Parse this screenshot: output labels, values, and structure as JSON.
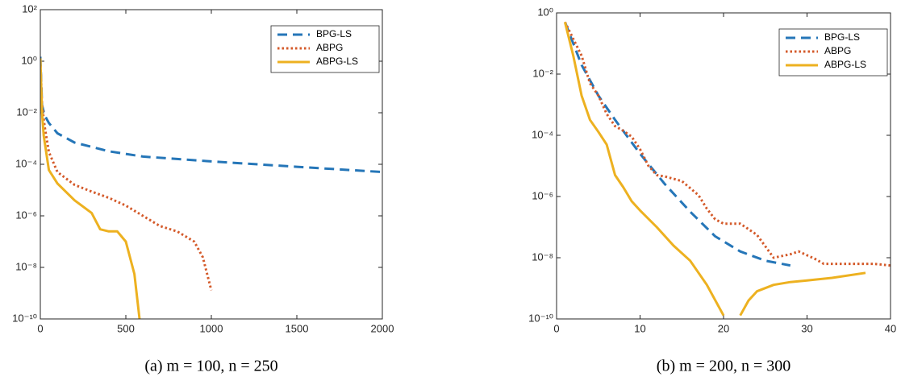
{
  "chart_data": [
    {
      "type": "line",
      "caption": "(a) m = 100, n = 250",
      "log_y": true,
      "legend": "upper right",
      "xlim": [
        0,
        2000
      ],
      "xticks": [
        0,
        500,
        1000,
        1500,
        2000
      ],
      "ylim": [
        1e-10,
        100
      ],
      "yticks": [
        {
          "value": 100,
          "label": "10²"
        },
        {
          "value": 1,
          "label": "10⁰"
        },
        {
          "value": 0.01,
          "label": "10⁻²"
        },
        {
          "value": 0.0001,
          "label": "10⁻⁴"
        },
        {
          "value": 1e-06,
          "label": "10⁻⁶"
        },
        {
          "value": 1e-08,
          "label": "10⁻⁸"
        },
        {
          "value": 1e-10,
          "label": "10⁻¹⁰"
        }
      ],
      "series": [
        {
          "name": "BPG-LS",
          "color": "#2576b8",
          "style": "dashed",
          "x": [
            0,
            10,
            25,
            50,
            100,
            200,
            400,
            600,
            1000,
            1500,
            2000
          ],
          "values": [
            1.5,
            0.02,
            0.008,
            0.004,
            0.0016,
            0.0007,
            0.00032,
            0.0002,
            0.00013,
            8e-05,
            5e-05
          ]
        },
        {
          "name": "ABPG",
          "color": "#d45a2a",
          "style": "dotted",
          "x": [
            0,
            10,
            25,
            50,
            100,
            200,
            300,
            400,
            500,
            600,
            700,
            800,
            900,
            950,
            1000
          ],
          "values": [
            1,
            0.02,
            0.003,
            0.0003,
            5e-05,
            1.6e-05,
            8.7e-06,
            5e-06,
            2.5e-06,
            1e-06,
            4e-07,
            2.5e-07,
            1e-07,
            2.5e-08,
            1.3e-09
          ]
        },
        {
          "name": "ABPG-LS",
          "color": "#edb120",
          "style": "solid",
          "x": [
            0,
            10,
            20,
            50,
            100,
            200,
            300,
            350,
            400,
            450,
            500,
            550,
            580
          ],
          "values": [
            1.3,
            0.01,
            0.0013,
            6e-05,
            1.8e-05,
            4e-06,
            1.3e-06,
            3e-07,
            2.5e-07,
            2.5e-07,
            1e-07,
            5.6e-09,
            1e-10
          ]
        }
      ]
    },
    {
      "type": "line",
      "caption": "(b) m = 200, n = 300",
      "log_y": true,
      "legend": "upper right",
      "xlim": [
        0,
        40
      ],
      "xticks": [
        0,
        10,
        20,
        30,
        40
      ],
      "ylim": [
        1e-10,
        1
      ],
      "yticks": [
        {
          "value": 1,
          "label": "10⁰"
        },
        {
          "value": 0.01,
          "label": "10⁻²"
        },
        {
          "value": 0.0001,
          "label": "10⁻⁴"
        },
        {
          "value": 1e-06,
          "label": "10⁻⁶"
        },
        {
          "value": 1e-08,
          "label": "10⁻⁸"
        },
        {
          "value": 1e-10,
          "label": "10⁻¹⁰"
        }
      ],
      "series": [
        {
          "name": "BPG-LS",
          "color": "#2576b8",
          "style": "dashed",
          "x": [
            1,
            3,
            5,
            7,
            10,
            13,
            16,
            19,
            22,
            25,
            28
          ],
          "values": [
            0.5,
            0.02,
            0.002,
            0.00032,
            2.5e-05,
            2.5e-06,
            3.2e-07,
            5e-08,
            1.6e-08,
            8e-09,
            5.6e-09
          ]
        },
        {
          "name": "ABPG",
          "color": "#d45a2a",
          "style": "dotted",
          "x": [
            1,
            3,
            4,
            5,
            6,
            7,
            8,
            9,
            10,
            11,
            12,
            13,
            15,
            17,
            18,
            19,
            20,
            22,
            24,
            26,
            28,
            29,
            31,
            32,
            35,
            38,
            40
          ],
          "values": [
            0.5,
            0.04,
            0.005,
            0.002,
            0.0005,
            0.0002,
            0.00014,
            9e-05,
            3.5e-05,
            1e-05,
            5e-06,
            4.5e-06,
            3.2e-06,
            1.1e-06,
            4e-07,
            1.8e-07,
            1.3e-07,
            1.3e-07,
            5.6e-08,
            1e-08,
            1.3e-08,
            1.6e-08,
            9e-09,
            6.3e-09,
            6.3e-09,
            6.3e-09,
            5.6e-09
          ]
        },
        {
          "name": "ABPG-LS",
          "color": "#edb120",
          "style": "solid",
          "x": [
            1,
            2,
            3,
            4,
            5,
            6,
            7,
            8,
            9,
            10,
            12,
            14,
            16,
            18,
            20,
            21,
            22,
            23,
            24,
            26,
            28,
            30,
            33,
            37
          ],
          "values": [
            0.5,
            0.04,
            0.002,
            0.00032,
            0.00013,
            5e-05,
            5e-06,
            2e-06,
            7e-07,
            3.5e-07,
            1e-07,
            2.5e-08,
            8e-09,
            1.3e-09,
            1.3e-10,
            null,
            1.3e-10,
            4e-10,
            8e-10,
            1.3e-09,
            1.6e-09,
            1.8e-09,
            2.2e-09,
            3.2e-09
          ]
        }
      ]
    }
  ]
}
